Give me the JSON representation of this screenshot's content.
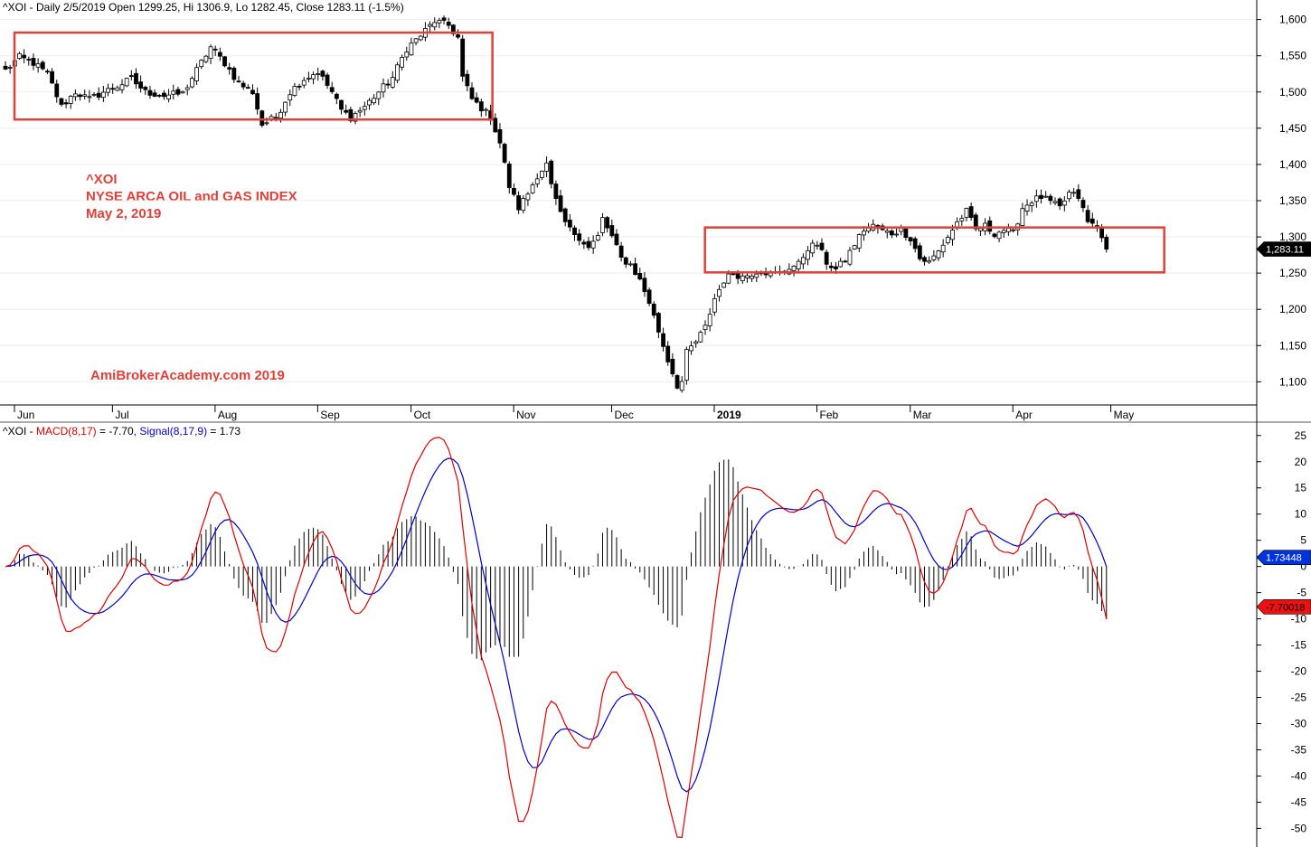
{
  "chart_data": [
    {
      "type": "candlestick",
      "header": {
        "symbol": "^XOI",
        "text": " - Daily 2/5/2019 Open 1299.25, Hi 1306.9, Lo 1282.45, Close 1283.11 (-1.5%)"
      },
      "y_ticks": [
        1100,
        1150,
        1200,
        1250,
        1300,
        1350,
        1400,
        1450,
        1500,
        1550,
        1600
      ],
      "y_tick_labels": [
        "1,100",
        "1,150",
        "1,200",
        "1,250",
        "1,300",
        "1,350",
        "1,400",
        "1,450",
        "1,500",
        "1,550",
        "1,600"
      ],
      "ylim": [
        1068,
        1612
      ],
      "last_value_label": "1,283.11",
      "last_value": 1283.11,
      "month_labels": [
        "Jun",
        "Jul",
        "Aug",
        "Sep",
        "Oct",
        "Nov",
        "Dec",
        "2019",
        "Feb",
        "Mar",
        "Apr",
        "May"
      ],
      "month_start_bar": [
        0,
        21,
        43,
        65,
        85,
        107,
        128,
        150,
        172,
        192,
        214,
        235
      ],
      "annotation_lines": [
        "^XOI",
        "NYSE ARCA OIL and GAS INDEX",
        "May 2, 2019"
      ],
      "watermark": "AmiBrokerAcademy.com  2019",
      "close_anchors": [
        [
          0,
          1530
        ],
        [
          3,
          1548
        ],
        [
          6,
          1540
        ],
        [
          9,
          1525
        ],
        [
          12,
          1480
        ],
        [
          15,
          1500
        ],
        [
          18,
          1490
        ],
        [
          21,
          1500
        ],
        [
          24,
          1508
        ],
        [
          27,
          1518
        ],
        [
          30,
          1500
        ],
        [
          34,
          1495
        ],
        [
          38,
          1498
        ],
        [
          41,
          1530
        ],
        [
          44,
          1562
        ],
        [
          47,
          1540
        ],
        [
          50,
          1512
        ],
        [
          53,
          1500
        ],
        [
          55,
          1455
        ],
        [
          58,
          1465
        ],
        [
          61,
          1500
        ],
        [
          64,
          1518
        ],
        [
          67,
          1528
        ],
        [
          70,
          1500
        ],
        [
          72,
          1475
        ],
        [
          74,
          1465
        ],
        [
          77,
          1480
        ],
        [
          80,
          1500
        ],
        [
          83,
          1520
        ],
        [
          86,
          1560
        ],
        [
          89,
          1578
        ],
        [
          92,
          1598
        ],
        [
          95,
          1592
        ],
        [
          97,
          1575
        ],
        [
          98,
          1520
        ],
        [
          100,
          1490
        ],
        [
          102,
          1478
        ],
        [
          104,
          1465
        ],
        [
          106,
          1430
        ],
        [
          108,
          1370
        ],
        [
          110,
          1340
        ],
        [
          112,
          1360
        ],
        [
          114,
          1385
        ],
        [
          116,
          1400
        ],
        [
          117,
          1370
        ],
        [
          119,
          1330
        ],
        [
          121,
          1310
        ],
        [
          123,
          1300
        ],
        [
          125,
          1285
        ],
        [
          127,
          1300
        ],
        [
          128,
          1325
        ],
        [
          130,
          1300
        ],
        [
          132,
          1270
        ],
        [
          134,
          1262
        ],
        [
          136,
          1240
        ],
        [
          138,
          1210
        ],
        [
          140,
          1170
        ],
        [
          142,
          1130
        ],
        [
          144,
          1095
        ],
        [
          145,
          1100
        ],
        [
          146,
          1140
        ],
        [
          148,
          1155
        ],
        [
          150,
          1175
        ],
        [
          152,
          1215
        ],
        [
          154,
          1240
        ],
        [
          156,
          1250
        ],
        [
          158,
          1245
        ],
        [
          160,
          1250
        ],
        [
          162,
          1255
        ],
        [
          164,
          1248
        ],
        [
          166,
          1250
        ],
        [
          168,
          1258
        ],
        [
          170,
          1262
        ],
        [
          172,
          1285
        ],
        [
          174,
          1290
        ],
        [
          176,
          1265
        ],
        [
          178,
          1255
        ],
        [
          180,
          1268
        ],
        [
          182,
          1290
        ],
        [
          184,
          1310
        ],
        [
          186,
          1315
        ],
        [
          188,
          1308
        ],
        [
          190,
          1305
        ],
        [
          192,
          1310
        ],
        [
          194,
          1298
        ],
        [
          196,
          1270
        ],
        [
          198,
          1265
        ],
        [
          200,
          1280
        ],
        [
          202,
          1300
        ],
        [
          204,
          1320
        ],
        [
          206,
          1335
        ],
        [
          208,
          1310
        ],
        [
          210,
          1315
        ],
        [
          212,
          1305
        ],
        [
          214,
          1310
        ],
        [
          216,
          1305
        ],
        [
          218,
          1340
        ],
        [
          220,
          1350
        ],
        [
          222,
          1355
        ],
        [
          224,
          1348
        ],
        [
          226,
          1340
        ],
        [
          228,
          1360
        ],
        [
          230,
          1355
        ],
        [
          232,
          1320
        ],
        [
          234,
          1315
        ],
        [
          235,
          1303
        ],
        [
          236,
          1283
        ]
      ],
      "range_boxes": [
        {
          "start_bar": 0,
          "end_bar": 104,
          "top": 1582,
          "bottom": 1462
        },
        {
          "start_bar": 148,
          "end_bar": 248,
          "top": 1313,
          "bottom": 1251
        }
      ]
    },
    {
      "type": "macd",
      "header": {
        "prefix": "^XOI - ",
        "macd_label": "MACD(8,17)",
        "macd_value": " = -7.70, ",
        "signal_label": "Signal(8,17,9)",
        "signal_value": " = 1.73"
      },
      "y_ticks": [
        -50,
        -45,
        -40,
        -35,
        -30,
        -25,
        -20,
        -15,
        -10,
        -5,
        0,
        5,
        10,
        15,
        20,
        25
      ],
      "ylim": [
        -52,
        26
      ],
      "signal_badge": "1.73448",
      "macd_badge": "-7.70018",
      "colors": {
        "macd": "#dd0000",
        "signal": "#0000cc",
        "histogram": "#000000",
        "box": "#e0403a",
        "signal_badge": "#0033dd",
        "macd_badge": "#ee1111"
      }
    }
  ]
}
